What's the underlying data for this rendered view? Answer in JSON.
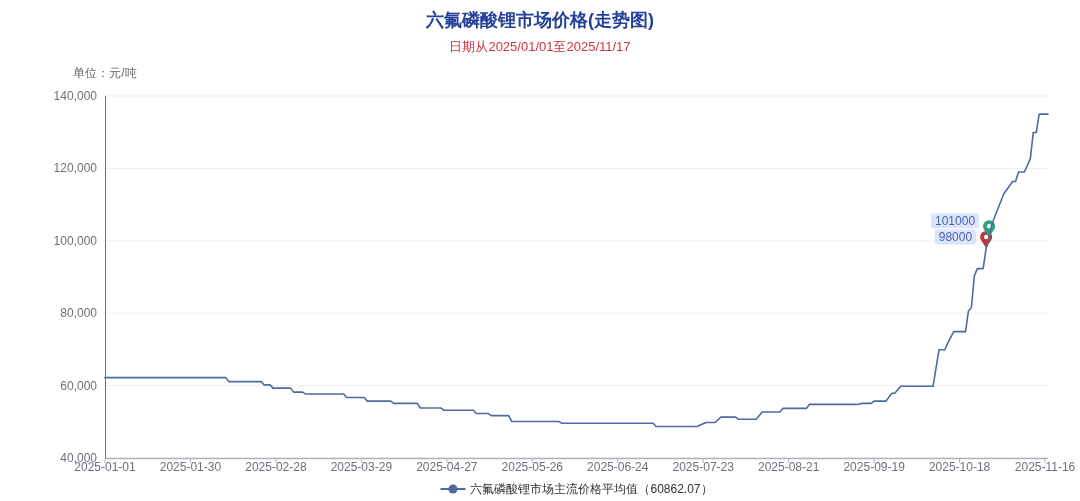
{
  "chart_data": {
    "type": "line",
    "title": "六氟磷酸锂市场价格(走势图)",
    "subtitle": "日期从2025/01/01至2025/11/17",
    "ylabel": "单位：元/吨",
    "x": [
      "2025-01-01",
      "2025-02-11",
      "2025-02-12",
      "2025-02-23",
      "2025-02-24",
      "2025-02-26",
      "2025-02-27",
      "2025-03-05",
      "2025-03-06",
      "2025-03-09",
      "2025-03-10",
      "2025-03-23",
      "2025-03-24",
      "2025-03-30",
      "2025-03-31",
      "2025-04-08",
      "2025-04-09",
      "2025-04-17",
      "2025-04-18",
      "2025-04-25",
      "2025-04-26",
      "2025-05-06",
      "2025-05-07",
      "2025-05-11",
      "2025-05-12",
      "2025-05-18",
      "2025-05-19",
      "2025-06-04",
      "2025-06-05",
      "2025-07-06",
      "2025-07-07",
      "2025-07-21",
      "2025-07-22",
      "2025-07-24",
      "2025-07-27",
      "2025-07-29",
      "2025-08-03",
      "2025-08-04",
      "2025-08-10",
      "2025-08-12",
      "2025-08-18",
      "2025-08-19",
      "2025-08-27",
      "2025-08-28",
      "2025-09-13",
      "2025-09-15",
      "2025-09-18",
      "2025-09-19",
      "2025-09-23",
      "2025-09-25",
      "2025-09-26",
      "2025-09-28",
      "2025-10-09",
      "2025-10-11",
      "2025-10-13",
      "2025-10-14",
      "2025-10-16",
      "2025-10-20",
      "2025-10-21",
      "2025-10-22",
      "2025-10-23",
      "2025-10-24",
      "2025-10-26",
      "2025-10-27",
      "2025-10-28",
      "2025-10-29",
      "2025-11-02",
      "2025-11-05",
      "2025-11-06",
      "2025-11-07",
      "2025-11-09",
      "2025-11-11",
      "2025-11-12",
      "2025-11-13",
      "2025-11-14",
      "2025-11-17"
    ],
    "series": [
      {
        "name": "六氟磷酸锂市场主流价格平均值（60862.07）",
        "color": "#4f6aa3",
        "values": [
          62200,
          62200,
          61100,
          61100,
          60200,
          60200,
          59300,
          59300,
          58200,
          58200,
          57700,
          57700,
          56700,
          56700,
          55700,
          55700,
          55100,
          55100,
          53800,
          53800,
          53200,
          53200,
          52300,
          52300,
          51700,
          51700,
          50100,
          50100,
          49600,
          49600,
          48700,
          48700,
          49100,
          49800,
          49800,
          51300,
          51300,
          50700,
          50700,
          52700,
          52700,
          53700,
          53700,
          54800,
          54800,
          55100,
          55100,
          55700,
          55700,
          57900,
          57900,
          59800,
          59800,
          69900,
          69900,
          71800,
          74900,
          74900,
          80600,
          81500,
          90300,
          92300,
          92300,
          98000,
          101000,
          104700,
          113000,
          116400,
          116400,
          119000,
          119000,
          122700,
          129900,
          129900,
          135000,
          135000
        ]
      }
    ],
    "xlim": [
      "2025-01-01",
      "2025-11-17"
    ],
    "xticks": [
      "2025-01-01",
      "2025-01-30",
      "2025-02-28",
      "2025-03-29",
      "2025-04-27",
      "2025-05-26",
      "2025-06-24",
      "2025-07-23",
      "2025-08-21",
      "2025-09-19",
      "2025-10-18",
      "2025-11-16"
    ],
    "ylim": [
      40000,
      140000
    ],
    "yticks": [
      {
        "value": 40000,
        "label": "40,000"
      },
      {
        "value": 60000,
        "label": "60,000"
      },
      {
        "value": 80000,
        "label": "80,000"
      },
      {
        "value": 100000,
        "label": "100,000"
      },
      {
        "value": 120000,
        "label": "120,000"
      },
      {
        "value": 140000,
        "label": "140,000"
      }
    ],
    "grid": "y",
    "legend": "bottom",
    "annotations": [
      {
        "text": "98000",
        "x": "2025-10-27",
        "y": 98000
      },
      {
        "text": "101000",
        "x": "2025-10-28",
        "y": 101000
      }
    ]
  }
}
